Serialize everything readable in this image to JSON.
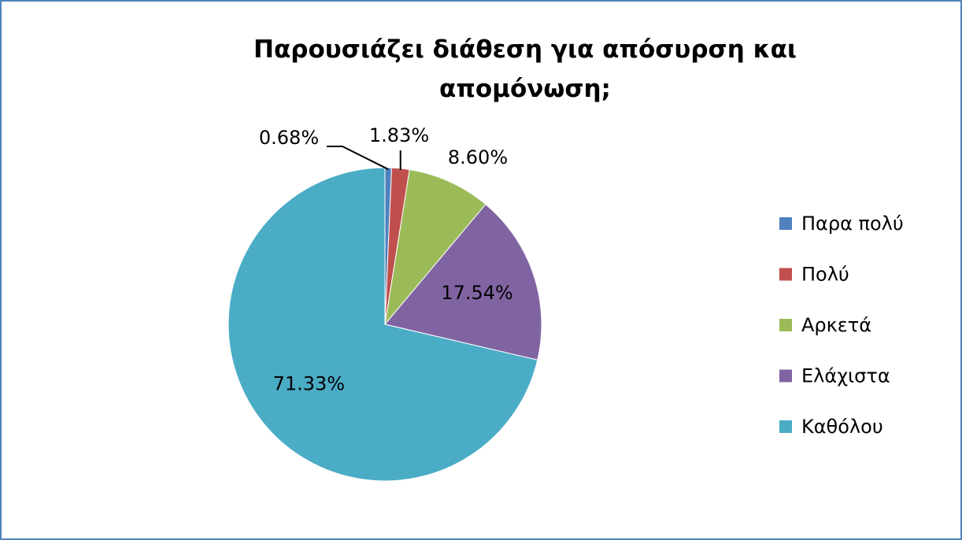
{
  "chart_data": {
    "type": "pie",
    "title": "Παρουσιάζει διάθεση για απόσυρση και απομόνωση;",
    "categories": [
      "Παρα πολύ",
      "Πολύ",
      "Αρκετά",
      "Ελάχιστα",
      "Καθόλου"
    ],
    "values": [
      0.68,
      1.83,
      8.6,
      17.54,
      71.33
    ],
    "value_labels": [
      "0.68%",
      "1.83%",
      "8.60%",
      "17.54%",
      "71.33%"
    ],
    "colors": [
      "#4f81bd",
      "#c0504d",
      "#9bbb59",
      "#8064a2",
      "#4bacc6"
    ],
    "legend": "right"
  }
}
